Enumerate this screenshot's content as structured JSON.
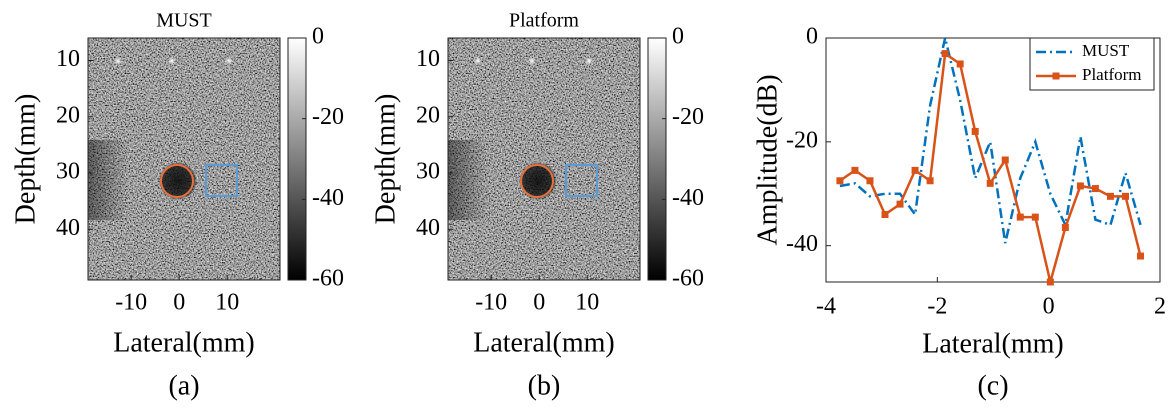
{
  "chart_data": [
    {
      "type": "image",
      "title": "MUST",
      "caption": "(a)",
      "xlabel": "Lateral(mm)",
      "ylabel": "Depth(mm)",
      "xlim": [
        -19,
        21
      ],
      "xticks": [
        -10,
        0,
        10
      ],
      "ylim": [
        6,
        49
      ],
      "yticks": [
        10,
        20,
        30,
        40
      ],
      "y_reversed": true,
      "colormap": "gray",
      "clim": [
        -60,
        0
      ],
      "cticks": [
        0,
        -20,
        -40,
        -60
      ]
    },
    {
      "type": "image",
      "title": "Platform",
      "caption": "(b)",
      "xlabel": "Lateral(mm)",
      "ylabel": "Depth(mm)",
      "xlim": [
        -19,
        21
      ],
      "xticks": [
        -10,
        0,
        10
      ],
      "ylim": [
        6,
        49
      ],
      "yticks": [
        10,
        20,
        30,
        40
      ],
      "y_reversed": true,
      "colormap": "gray",
      "clim": [
        -60,
        0
      ],
      "cticks": [
        0,
        -20,
        -40,
        -60
      ]
    },
    {
      "type": "line",
      "caption": "(c)",
      "xlabel": "Lateral(mm)",
      "ylabel": "Amplitude(dB)",
      "xlim": [
        -4,
        2
      ],
      "xticks": [
        -4,
        -2,
        0,
        2
      ],
      "ylim": [
        -47,
        0
      ],
      "yticks": [
        -40,
        -20,
        0
      ],
      "legend": "upper right",
      "series": [
        {
          "name": "MUST",
          "color": "#0072bd",
          "line_style": "dashdot",
          "x": [
            -3.75,
            -3.48,
            -3.21,
            -2.94,
            -2.67,
            -2.4,
            -2.13,
            -1.86,
            -1.59,
            -1.32,
            -1.05,
            -0.78,
            -0.51,
            -0.24,
            0.03,
            0.3,
            0.57,
            0.84,
            1.11,
            1.38,
            1.65
          ],
          "values": [
            -28.5,
            -28,
            -30.5,
            -30,
            -30,
            -34,
            -13,
            0,
            -12,
            -27,
            -20,
            -39.5,
            -27,
            -20,
            -30,
            -36,
            -19,
            -35,
            -36,
            -26,
            -36
          ]
        },
        {
          "name": "Platform",
          "color": "#d95319",
          "marker": "square",
          "x": [
            -3.75,
            -3.48,
            -3.21,
            -2.94,
            -2.67,
            -2.4,
            -2.13,
            -1.86,
            -1.59,
            -1.32,
            -1.05,
            -0.78,
            -0.51,
            -0.24,
            0.03,
            0.3,
            0.57,
            0.84,
            1.11,
            1.38,
            1.65
          ],
          "values": [
            -27.5,
            -25.5,
            -27.5,
            -34,
            -32,
            -25.5,
            -27.5,
            -3,
            -5,
            -18,
            -28,
            -23.5,
            -34.5,
            -34.5,
            -47,
            -36.5,
            -28.5,
            -29,
            -30.5,
            -30.5,
            -42
          ]
        }
      ]
    }
  ]
}
